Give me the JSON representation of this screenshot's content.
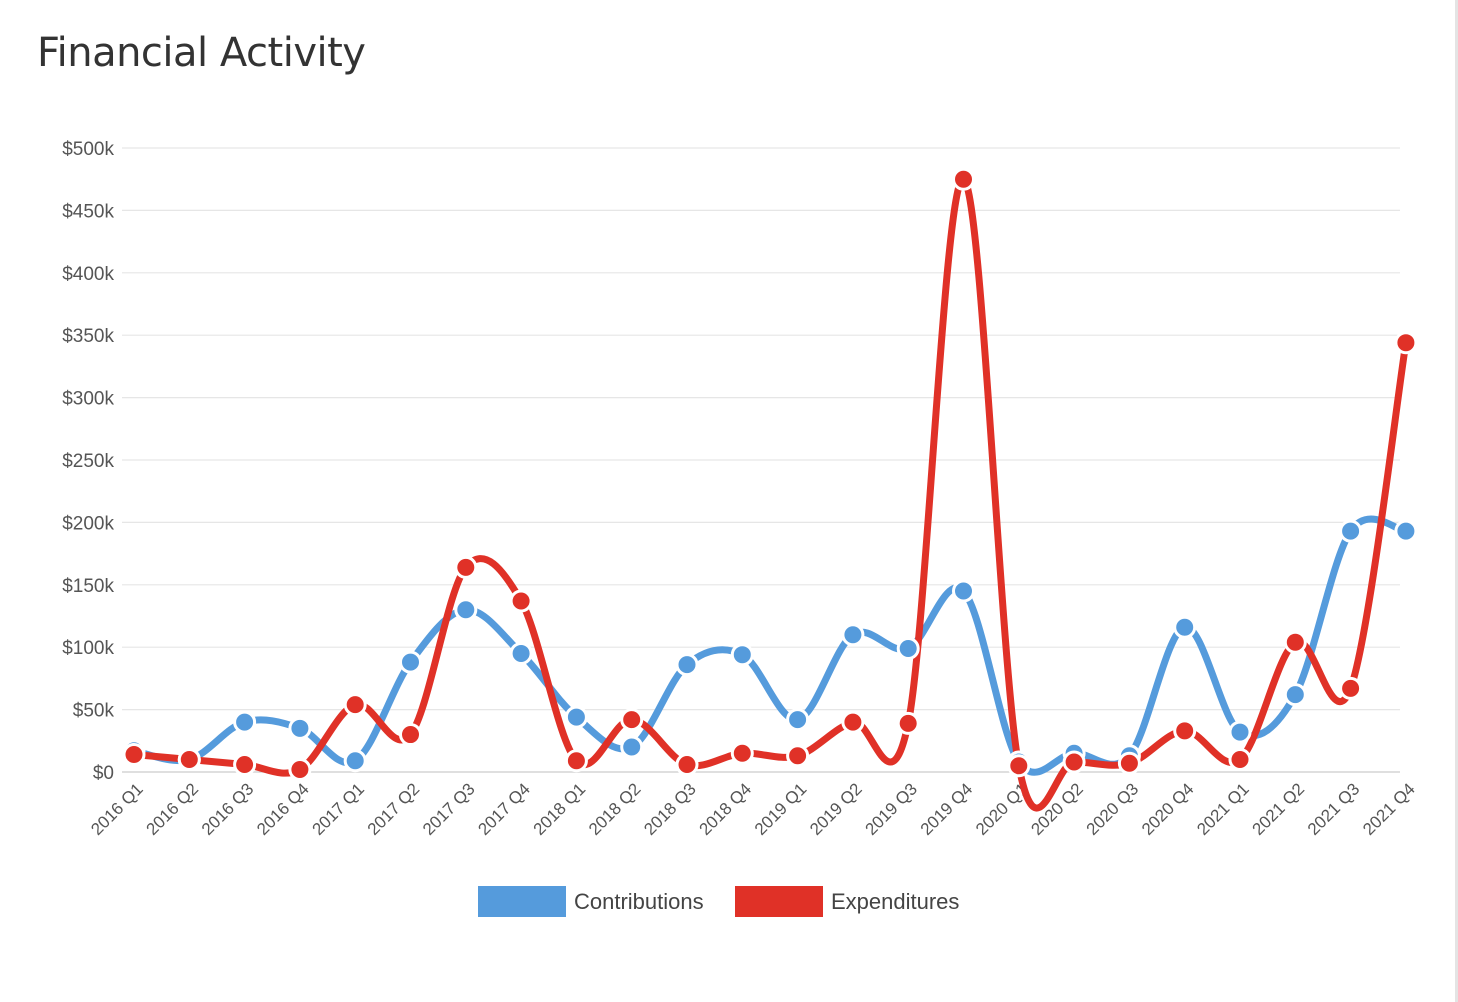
{
  "title": "Financial Activity",
  "chart_data": {
    "type": "line",
    "categories": [
      "2016 Q1",
      "2016 Q2",
      "2016 Q3",
      "2016 Q4",
      "2017 Q1",
      "2017 Q2",
      "2017 Q3",
      "2017 Q4",
      "2018 Q1",
      "2018 Q2",
      "2018 Q3",
      "2018 Q4",
      "2019 Q1",
      "2019 Q2",
      "2019 Q3",
      "2019 Q4",
      "2020 Q1",
      "2020 Q2",
      "2020 Q3",
      "2020 Q4",
      "2021 Q1",
      "2021 Q2",
      "2021 Q3",
      "2021 Q4"
    ],
    "y_ticks": [
      {
        "value": 0,
        "label": "$0"
      },
      {
        "value": 50000,
        "label": "$50k"
      },
      {
        "value": 100000,
        "label": "$100k"
      },
      {
        "value": 150000,
        "label": "$150k"
      },
      {
        "value": 200000,
        "label": "$200k"
      },
      {
        "value": 250000,
        "label": "$250k"
      },
      {
        "value": 300000,
        "label": "$300k"
      },
      {
        "value": 350000,
        "label": "$350k"
      },
      {
        "value": 400000,
        "label": "$400k"
      },
      {
        "value": 450000,
        "label": "$450k"
      },
      {
        "value": 500000,
        "label": "$500k"
      }
    ],
    "ylim": [
      0,
      500000
    ],
    "grid": true,
    "legend_position": "bottom",
    "series": [
      {
        "name": "Contributions",
        "color": "#559bdc",
        "values": [
          17000,
          10000,
          40000,
          35000,
          9000,
          88000,
          130000,
          95000,
          44000,
          20000,
          86000,
          94000,
          42000,
          110000,
          99000,
          145000,
          8000,
          15000,
          13000,
          116000,
          32000,
          62000,
          193000,
          193000
        ]
      },
      {
        "name": "Expenditures",
        "color": "#e03127",
        "values": [
          14000,
          10000,
          6000,
          2000,
          54000,
          30000,
          164000,
          137000,
          9000,
          42000,
          6000,
          15000,
          13000,
          40000,
          39000,
          475000,
          5000,
          8000,
          7000,
          33000,
          10000,
          104000,
          67000,
          344000
        ]
      }
    ]
  }
}
